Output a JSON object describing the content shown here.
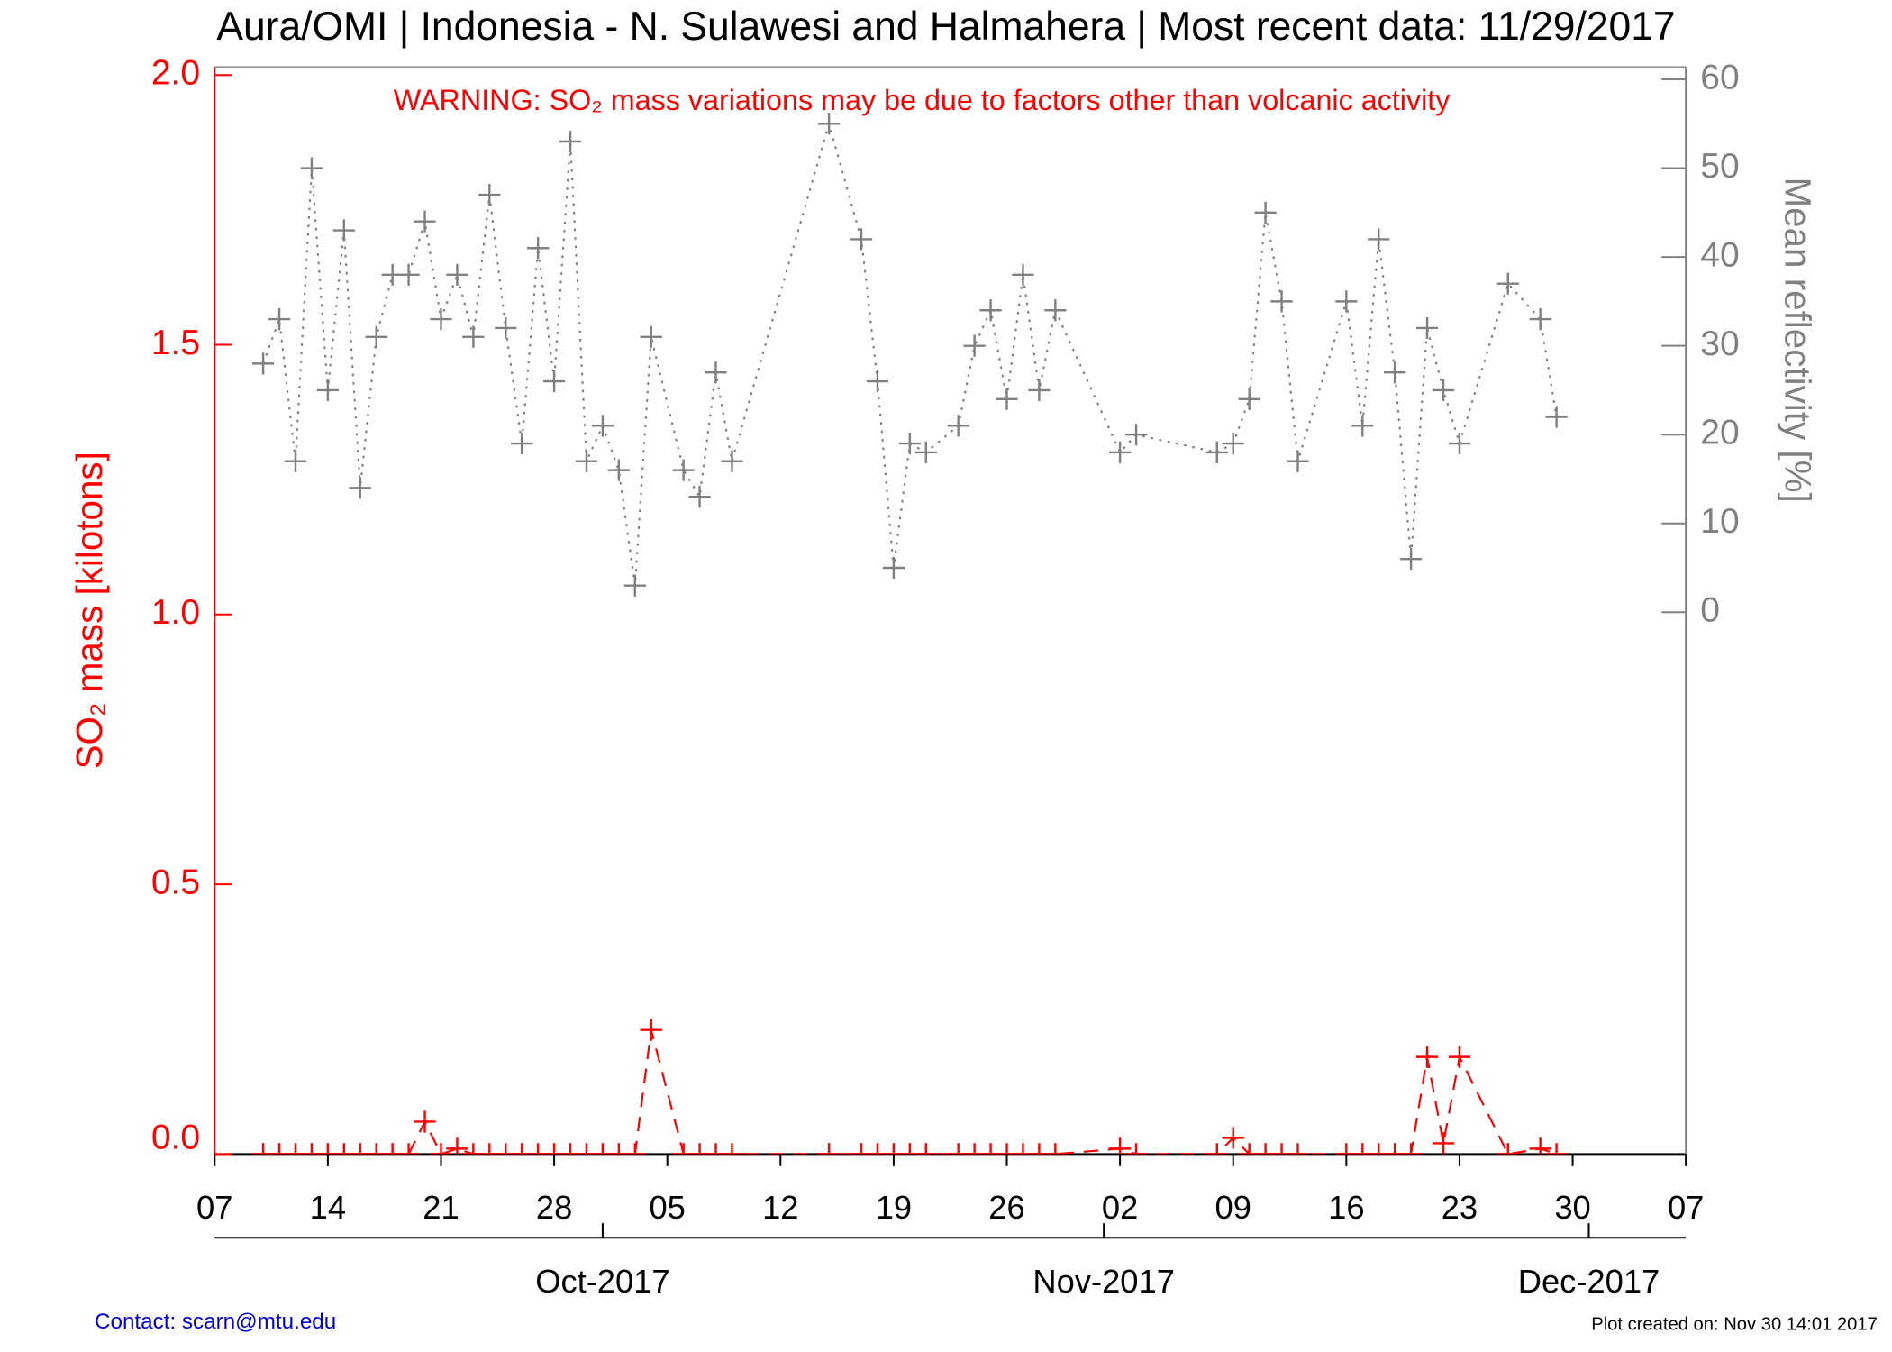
{
  "chart_data": {
    "type": "line",
    "title": "Aura/OMI | Indonesia - N. Sulawesi and Halmahera | Most recent data: 11/29/2017",
    "annotation": "WARNING: SO₂ mass variations may be due to factors other than volcanic activity",
    "ylabel": "SO₂ mass [kilotons]",
    "y2label": "Mean reflectivity [%]",
    "contact": "Contact: scarn@mtu.edu",
    "created": "Plot created on: Nov 30 14:01 2017",
    "x": [
      "2017-09-10",
      "2017-09-11",
      "2017-09-12",
      "2017-09-13",
      "2017-09-14",
      "2017-09-15",
      "2017-09-16",
      "2017-09-17",
      "2017-09-18",
      "2017-09-19",
      "2017-09-20",
      "2017-09-21",
      "2017-09-22",
      "2017-09-23",
      "2017-09-24",
      "2017-09-25",
      "2017-09-26",
      "2017-09-27",
      "2017-09-28",
      "2017-09-29",
      "2017-09-30",
      "2017-10-01",
      "2017-10-02",
      "2017-10-03",
      "2017-10-04",
      "2017-10-06",
      "2017-10-07",
      "2017-10-08",
      "2017-10-09",
      "2017-10-15",
      "2017-10-17",
      "2017-10-18",
      "2017-10-19",
      "2017-10-20",
      "2017-10-21",
      "2017-10-23",
      "2017-10-24",
      "2017-10-25",
      "2017-10-26",
      "2017-10-27",
      "2017-10-28",
      "2017-10-29",
      "2017-11-02",
      "2017-11-03",
      "2017-11-08",
      "2017-11-09",
      "2017-11-10",
      "2017-11-11",
      "2017-11-12",
      "2017-11-13",
      "2017-11-16",
      "2017-11-17",
      "2017-11-18",
      "2017-11-19",
      "2017-11-20",
      "2017-11-21",
      "2017-11-22",
      "2017-11-23",
      "2017-11-26",
      "2017-11-28",
      "2017-11-29"
    ],
    "series": [
      {
        "name": "SO2 mass",
        "color": "#ff0000",
        "dash": "dashed",
        "values": [
          0,
          0,
          0,
          0,
          0,
          0,
          0,
          0,
          0,
          0,
          0.06,
          0,
          0.01,
          0,
          0,
          0,
          0,
          0,
          0,
          0,
          0,
          0,
          0,
          0,
          0.23,
          0,
          0,
          0,
          0,
          0,
          0,
          0,
          0,
          0,
          0,
          0,
          0,
          0,
          0,
          0,
          0,
          0,
          0.01,
          0,
          0,
          0.03,
          0,
          0,
          0,
          0,
          0,
          0,
          0,
          0,
          0,
          0.18,
          0.02,
          0.18,
          0,
          0.01,
          0
        ]
      },
      {
        "name": "Mean reflectivity",
        "color": "#808080",
        "dash": "dotted",
        "axis": "y2",
        "values": [
          28,
          33,
          17,
          50,
          25,
          43,
          14,
          31,
          38,
          38,
          44,
          33,
          38,
          31,
          47,
          32,
          19,
          41,
          26,
          53,
          17,
          21,
          16,
          3,
          31,
          16,
          13,
          27,
          17,
          55,
          42,
          26,
          5,
          19,
          18,
          21,
          30,
          34,
          24,
          38,
          25,
          34,
          18,
          20,
          18,
          19,
          24,
          45,
          35,
          17,
          35,
          21,
          42,
          27,
          6,
          32,
          25,
          19,
          37,
          33,
          22
        ]
      }
    ],
    "xlim": [
      "2017-09-07",
      "2017-12-07"
    ],
    "xticks": [
      {
        "value": "2017-09-07",
        "label": "07"
      },
      {
        "value": "2017-09-14",
        "label": "14"
      },
      {
        "value": "2017-09-21",
        "label": "21"
      },
      {
        "value": "2017-09-28",
        "label": "28"
      },
      {
        "value": "2017-10-05",
        "label": "05"
      },
      {
        "value": "2017-10-12",
        "label": "12"
      },
      {
        "value": "2017-10-19",
        "label": "19"
      },
      {
        "value": "2017-10-26",
        "label": "26"
      },
      {
        "value": "2017-11-02",
        "label": "02"
      },
      {
        "value": "2017-11-09",
        "label": "09"
      },
      {
        "value": "2017-11-16",
        "label": "16"
      },
      {
        "value": "2017-11-23",
        "label": "23"
      },
      {
        "value": "2017-11-30",
        "label": "30"
      },
      {
        "value": "2017-12-07",
        "label": "07"
      }
    ],
    "x2ticks": [
      {
        "value": "2017-10-01",
        "label": "Oct-2017"
      },
      {
        "value": "2017-11-01",
        "label": "Nov-2017"
      },
      {
        "value": "2017-12-01",
        "label": "Dec-2017"
      }
    ],
    "ylim": [
      0,
      2.015
    ],
    "yticks": [
      {
        "value": 0,
        "label": "0.0"
      },
      {
        "value": 0.5,
        "label": "0.5"
      },
      {
        "value": 1,
        "label": "1.0"
      },
      {
        "value": 1.5,
        "label": "1.5"
      },
      {
        "value": 2,
        "label": "2.0"
      }
    ],
    "y2lim": [
      -61,
      61.4
    ],
    "y2ticks": [
      0,
      10,
      20,
      30,
      40,
      50,
      60
    ]
  }
}
